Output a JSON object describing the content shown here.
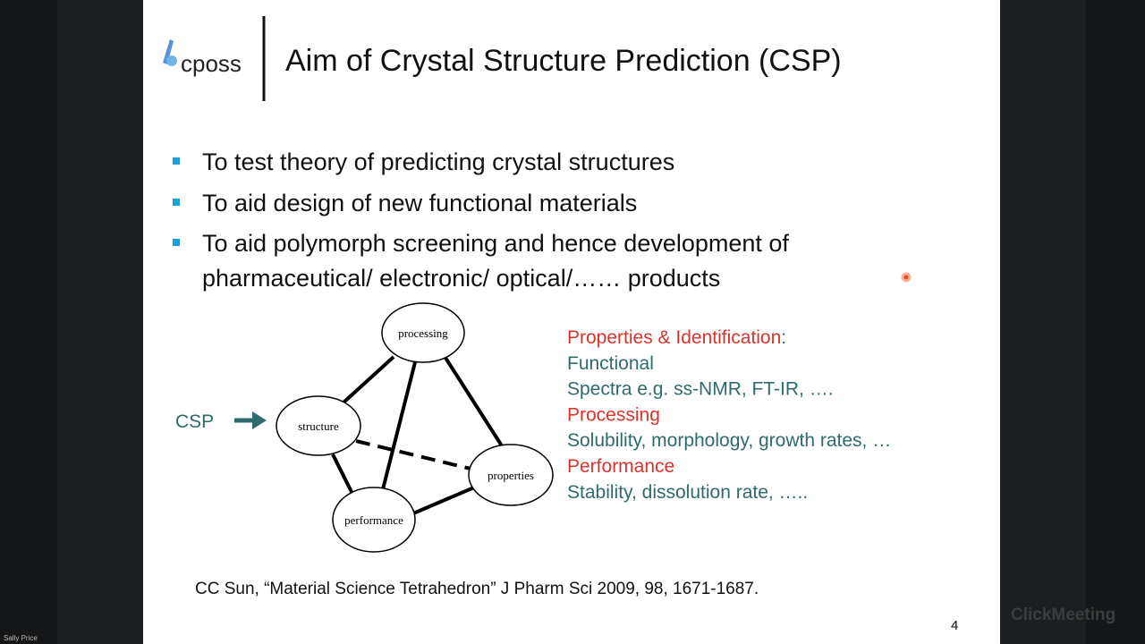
{
  "slide": {
    "logo": "cposs",
    "title": "Aim of Crystal Structure Prediction (CSP)",
    "bullets": [
      [
        "To test theory of predicting crystal structures"
      ],
      [
        "To aid design of new functional materials"
      ],
      [
        "To aid polymorph screening and hence development of",
        "pharmaceutical/ electronic/ optical/…… products"
      ]
    ],
    "diagram": {
      "input_label": "CSP",
      "nodes": [
        "processing",
        "structure",
        "properties",
        "performance"
      ]
    },
    "aspects": [
      {
        "text": "Properties & Identification",
        "suffix": ":",
        "color": "#d9342b"
      },
      {
        "text": "Functional",
        "color": "#2f6b6b"
      },
      {
        "text": "Spectra e.g. ss-NMR, FT-IR, ….",
        "color": "#2f6b6b"
      },
      {
        "text": "Processing",
        "color": "#d9342b"
      },
      {
        "text": "Solubility, morphology, growth rates, …",
        "color": "#2f6b6b"
      },
      {
        "text": "Performance",
        "color": "#d9342b"
      },
      {
        "text": "Stability, dissolution rate, …..",
        "color": "#2f6b6b"
      }
    ],
    "citation": "CC Sun, “Material Science Tetrahedron” J Pharm Sci 2009, 98, 1671-1687.",
    "page_number": "4"
  },
  "watermark": "ClickMeeting",
  "presenter": "Sally Price"
}
